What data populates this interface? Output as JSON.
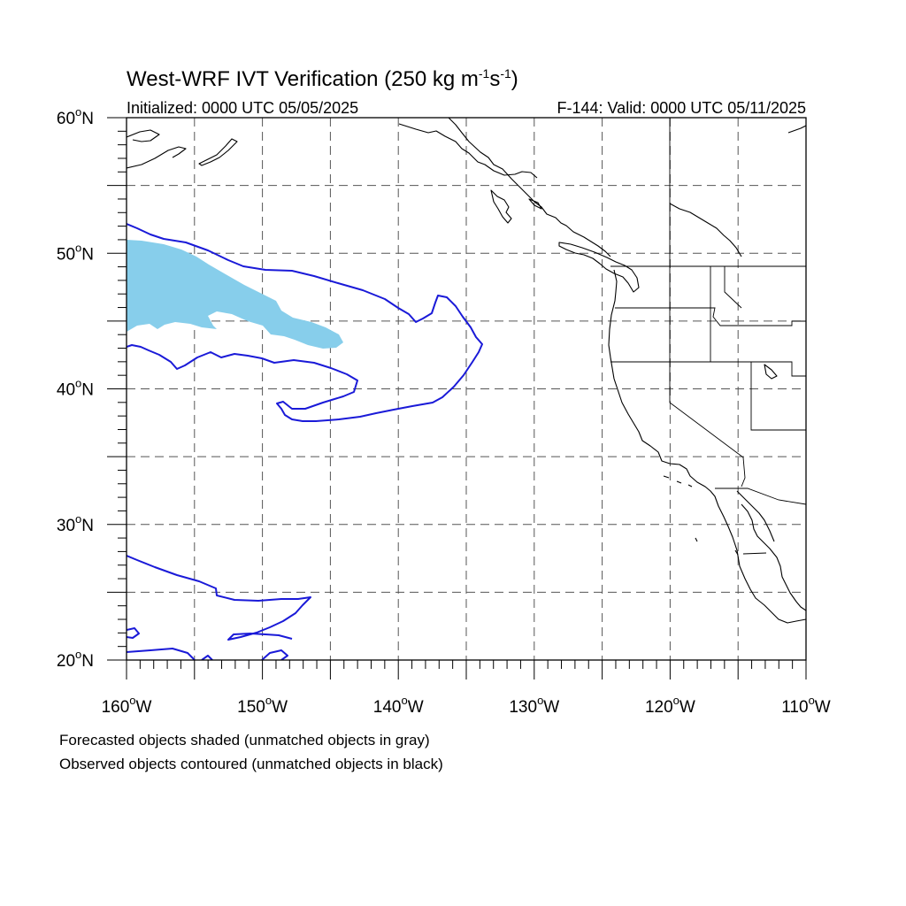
{
  "title": {
    "main": "West-WRF IVT Verification (250 kg m",
    "unit_exp1": "-1",
    "unit_mid": "s",
    "unit_exp2": "-1",
    "close": ")"
  },
  "subtitle": {
    "initialized": "Initialized: 0000 UTC 05/05/2025",
    "valid": "F-144: Valid: 0000 UTC 05/11/2025"
  },
  "map": {
    "projection": "equirectangular",
    "lon_range": [
      -160,
      -110
    ],
    "lat_range": [
      20,
      60
    ],
    "lon_ticks": [
      {
        "value": -160,
        "num": "160",
        "sup": "o",
        "hem": "W"
      },
      {
        "value": -150,
        "num": "150",
        "sup": "o",
        "hem": "W"
      },
      {
        "value": -140,
        "num": "140",
        "sup": "o",
        "hem": "W"
      },
      {
        "value": -130,
        "num": "130",
        "sup": "o",
        "hem": "W"
      },
      {
        "value": -120,
        "num": "120",
        "sup": "o",
        "hem": "W"
      },
      {
        "value": -110,
        "num": "110",
        "sup": "o",
        "hem": "W"
      }
    ],
    "lat_ticks": [
      {
        "value": 60,
        "num": "60",
        "sup": "o",
        "hem": "N"
      },
      {
        "value": 50,
        "num": "50",
        "sup": "o",
        "hem": "N"
      },
      {
        "value": 40,
        "num": "40",
        "sup": "o",
        "hem": "N"
      },
      {
        "value": 30,
        "num": "30",
        "sup": "o",
        "hem": "N"
      },
      {
        "value": 20,
        "num": "20",
        "sup": "o",
        "hem": "N"
      }
    ],
    "grid": true,
    "grid_lon_interval": 5,
    "grid_lat_interval": 5,
    "colors": {
      "forecast_shade": "#87ceeb",
      "observed_contour": "#1a1ad8",
      "coastline": "#000000",
      "grid": "#555555"
    }
  },
  "footnotes": {
    "line1": "Forecasted objects shaded (unmatched objects in gray)",
    "line2": "Observed objects contoured (unmatched objects in black)"
  }
}
